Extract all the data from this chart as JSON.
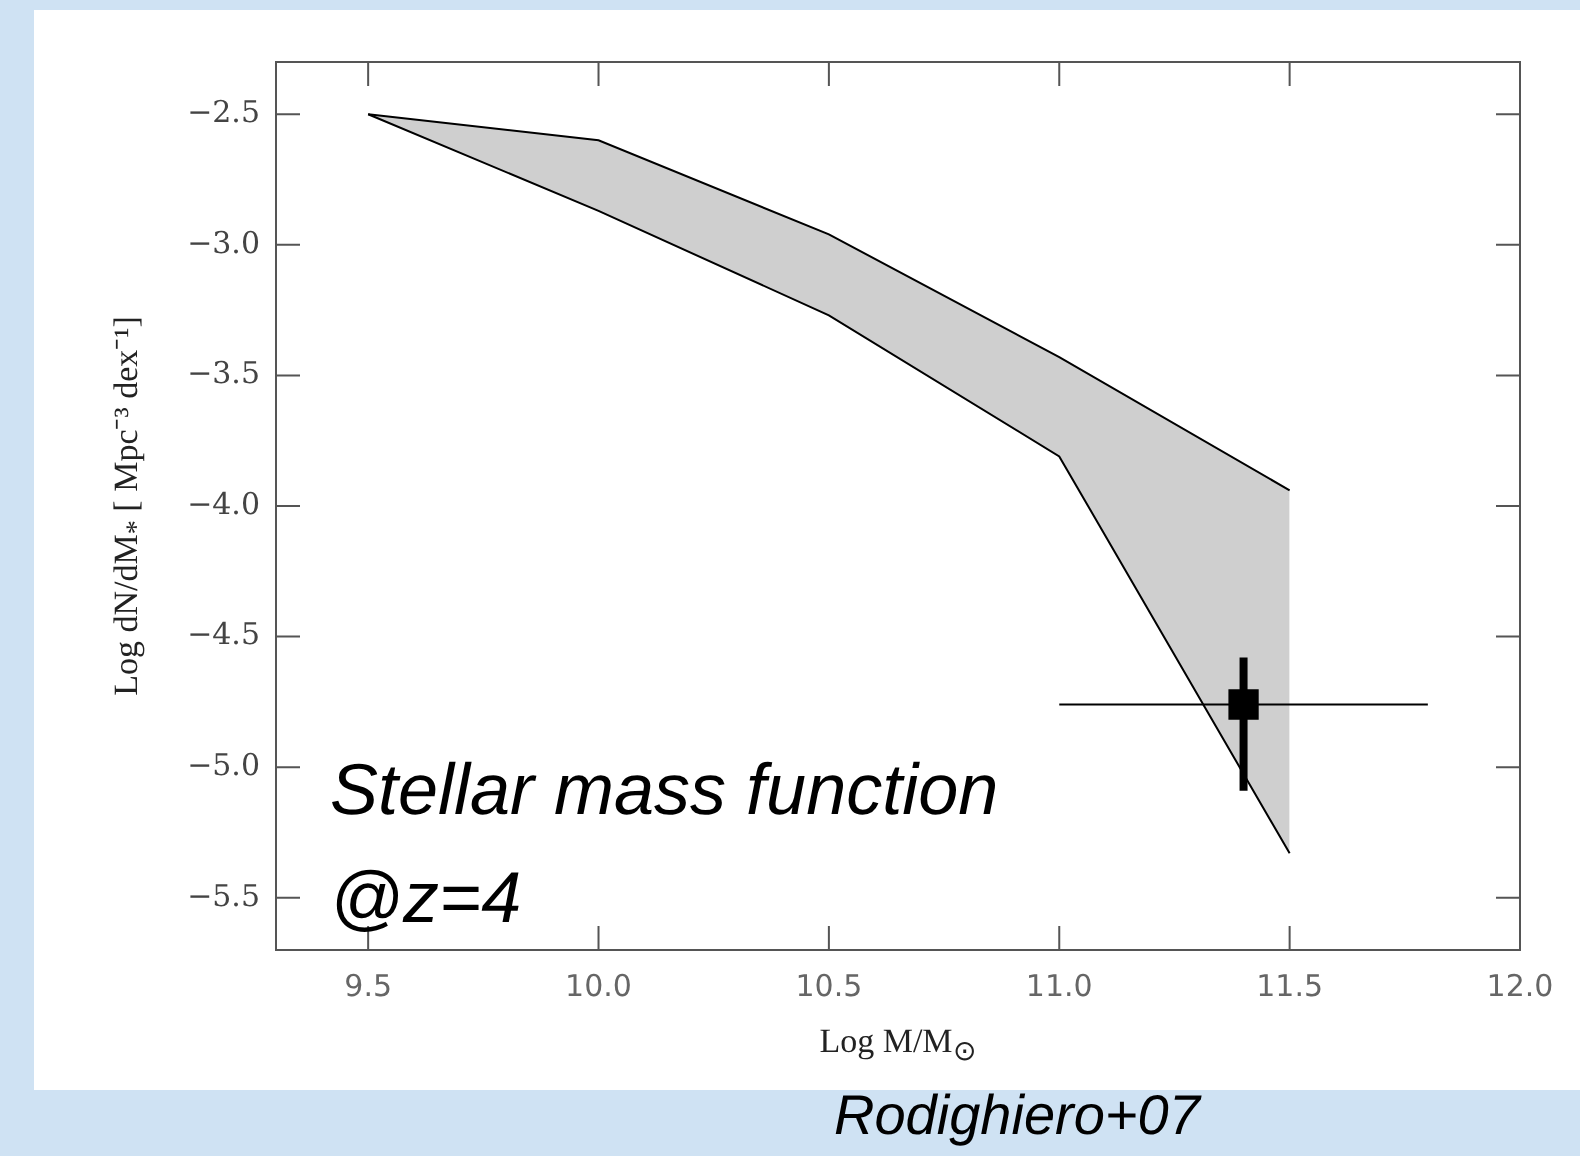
{
  "chart_data": {
    "type": "line",
    "xlabel": "Log M/M$_{⊙}$",
    "ylabel": "Log dN/dM$_{*}$ [ Mpc⁻³ dex⁻¹]",
    "xlim": [
      9.3,
      12.0
    ],
    "xticks": [
      9.5,
      {
        "value": 10,
        "label": "10.0"
      },
      10.5,
      {
        "value": 11,
        "label": "11.0"
      },
      11.5,
      {
        "value": 12,
        "label": "12.0"
      }
    ],
    "ylim": [
      -5.7,
      -2.3
    ],
    "yticks": [
      -5.5,
      {
        "value": -5,
        "label": "−5.0"
      },
      -4.5,
      {
        "value": -4,
        "label": "−4.0"
      },
      -3.5,
      {
        "value": -3,
        "label": "−3.0"
      },
      -2.5
    ],
    "grid": false,
    "legend": false,
    "series": [
      {
        "color": "#000000",
        "x": [
          9.5,
          10.0,
          10.5,
          11.0,
          11.5
        ],
        "values": [
          -2.5,
          -2.6,
          -2.96,
          -3.43,
          -3.94
        ]
      },
      {
        "type": "area",
        "color": "#000000",
        "x": [
          9.5,
          10.0,
          10.5,
          11.0,
          11.5
        ],
        "values": [
          -2.5,
          -2.87,
          -3.27,
          -3.81,
          -5.33
        ]
      },
      {
        "type": "scatter",
        "color": "#000000",
        "marker": "square",
        "x": [
          11.4
        ],
        "values": [
          -4.76
        ],
        "errors": [
          [
            -5.09,
            -4.58
          ]
        ],
        "xerrors": [
          [
            11.0,
            11.8
          ]
        ]
      }
    ],
    "annotations": [
      "Stellar mass function\n@z=4",
      "Rodighiero+07"
    ]
  }
}
